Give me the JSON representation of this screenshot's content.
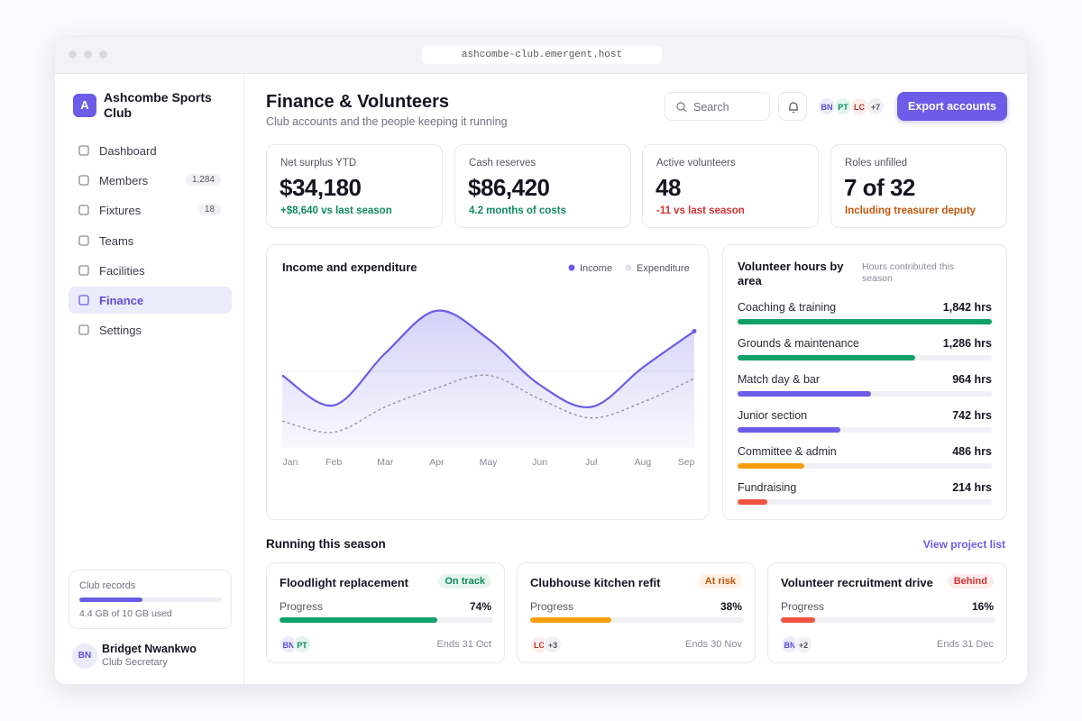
{
  "browser": {
    "url": "ashcombe-club.emergent.host"
  },
  "sidebar": {
    "logo": "A",
    "club": "Ashcombe Sports Club",
    "nav": [
      {
        "label": "Dashboard"
      },
      {
        "label": "Members",
        "badge": "1,284"
      },
      {
        "label": "Fixtures",
        "badge": "18"
      },
      {
        "label": "Teams"
      },
      {
        "label": "Facilities"
      },
      {
        "label": "Finance",
        "active": true
      },
      {
        "label": "Settings"
      }
    ],
    "storage": {
      "label": "Club records",
      "used": 4.4,
      "total": 10,
      "text": "4.4 GB of 10 GB used"
    },
    "user": {
      "initials": "BN",
      "name": "Bridget Nwankwo",
      "role": "Club Secretary"
    }
  },
  "header": {
    "title": "Finance & Volunteers",
    "subtitle": "Club accounts and the people keeping it running",
    "search": "Search",
    "avatars": [
      "BN",
      "PT",
      "LC"
    ],
    "more": "+7",
    "button": "Export accounts"
  },
  "kpis": [
    {
      "label": "Net surplus YTD",
      "value": "$34,180",
      "note": "+$8,640 vs last season",
      "tone": "positive"
    },
    {
      "label": "Cash reserves",
      "value": "$86,420",
      "note": "4.2 months of costs",
      "tone": "positive"
    },
    {
      "label": "Active volunteers",
      "value": "48",
      "note": "-11 vs last season",
      "tone": "negative"
    },
    {
      "label": "Roles unfilled",
      "value": "7 of 32",
      "note": "Including treasurer deputy",
      "tone": "warning"
    }
  ],
  "chart_data": [
    {
      "type": "line",
      "title": "Income and expenditure",
      "categories": [
        "Jan",
        "Feb",
        "Mar",
        "Apr",
        "May",
        "Jun",
        "Jul",
        "Aug",
        "Sep"
      ],
      "ylim": [
        0,
        100
      ],
      "series": [
        {
          "name": "Income",
          "color": "#6c5ce7",
          "values": [
            46,
            27,
            60,
            87,
            69,
            40,
            26,
            51,
            74
          ]
        },
        {
          "name": "Expenditure",
          "color": "#9a9aa6",
          "values": [
            17,
            10,
            26,
            38,
            46,
            31,
            19,
            29,
            44
          ]
        }
      ]
    },
    {
      "type": "hbar",
      "title": "Volunteer hours by area",
      "subtitle": "Hours contributed this season",
      "categories": [
        "Coaching & training",
        "Grounds & maintenance",
        "Match day & bar",
        "Junior section",
        "Committee & admin",
        "Fundraising"
      ],
      "values": [
        1842,
        1286,
        964,
        742,
        486,
        214
      ],
      "value_labels": [
        "1,842 hrs",
        "1,286 hrs",
        "964 hrs",
        "742 hrs",
        "486 hrs",
        "214 hrs"
      ],
      "colors": [
        "#12a06b",
        "#12a06b",
        "#6c5ce7",
        "#6c5ce7",
        "#f59e0b",
        "#ef5340"
      ],
      "xlim": [
        0,
        1842
      ]
    }
  ],
  "projects": {
    "title": "Running this season",
    "link": "View project list",
    "progress_label": "Progress",
    "items": [
      {
        "name": "Floodlight replacement",
        "status": "On track",
        "tone": "positive",
        "value": 74,
        "value_label": "74%",
        "avatars": [
          "BN",
          "PT"
        ],
        "ends": "Ends 31 Oct"
      },
      {
        "name": "Clubhouse kitchen refit",
        "status": "At risk",
        "tone": "warning",
        "value": 38,
        "value_label": "38%",
        "avatars": [
          "LC"
        ],
        "more": "+3",
        "ends": "Ends 30 Nov"
      },
      {
        "name": "Volunteer recruitment drive",
        "status": "Behind",
        "tone": "negative",
        "value": 16,
        "value_label": "16%",
        "avatars": [
          "BN"
        ],
        "more": "+2",
        "ends": "Ends 31 Dec"
      }
    ]
  }
}
